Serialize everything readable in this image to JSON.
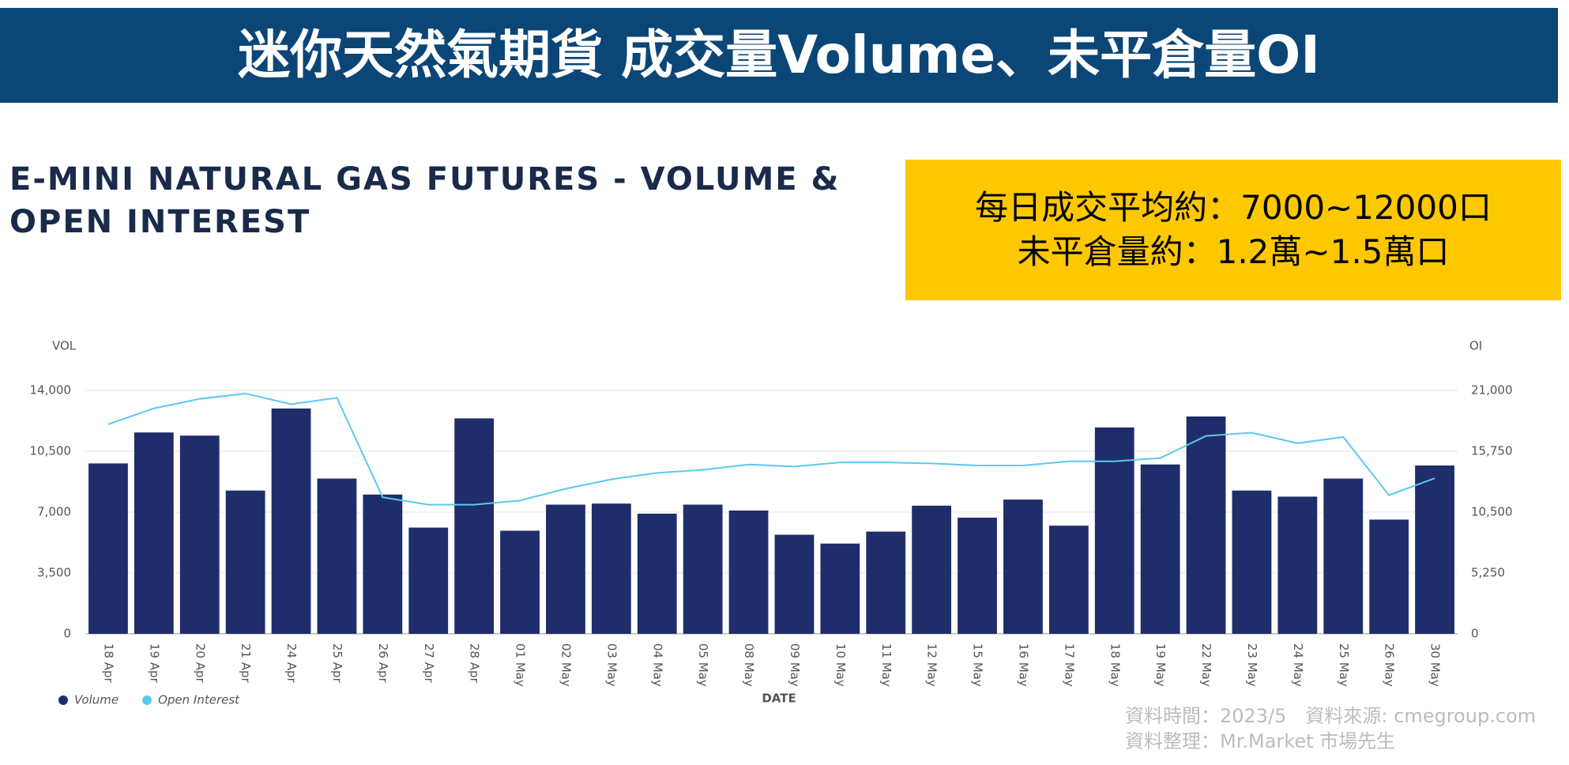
{
  "header": {
    "banner": "迷你天然氣期貨 成交量Volume、未平倉量OI"
  },
  "annotations": [
    "每日成交平均約：7000~12000口",
    "未平倉量約：1.2萬~1.5萬口"
  ],
  "footer": [
    "資料時間：2023/5　資料來源: cmegroup.com",
    "資料整理：Mr.Market 市場先生"
  ],
  "chart_data": {
    "type": "bar_line",
    "title": "E-MINI NATURAL GAS FUTURES - VOLUME & OPEN INTEREST",
    "x_label": "DATE",
    "y_label": "VOL",
    "y2_label": "OI",
    "categories": [
      "18 Apr",
      "19 Apr",
      "20 Apr",
      "21 Apr",
      "24 Apr",
      "25 Apr",
      "26 Apr",
      "27 Apr",
      "28 Apr",
      "01 May",
      "02 May",
      "03 May",
      "04 May",
      "05 May",
      "08 May",
      "09 May",
      "10 May",
      "11 May",
      "12 May",
      "15 May",
      "16 May",
      "17 May",
      "18 May",
      "19 May",
      "22 May",
      "23 May",
      "24 May",
      "25 May",
      "26 May",
      "30 May"
    ],
    "series": [
      {
        "name": "Volume",
        "type": "bar",
        "color": "#1f2d6b",
        "values": [
          9800,
          11580,
          11400,
          8240,
          12960,
          8930,
          8010,
          6110,
          12390,
          5930,
          7430,
          7490,
          6910,
          7430,
          7090,
          5700,
          5190,
          5880,
          7370,
          6680,
          7720,
          6220,
          11870,
          9740,
          12500,
          8240,
          7890,
          8930,
          6570,
          9680
        ]
      },
      {
        "name": "Open Interest",
        "type": "line",
        "axis": "y2",
        "color": "#5bc8f0",
        "values": [
          18080,
          19450,
          20270,
          20730,
          19810,
          20360,
          11780,
          11140,
          11140,
          11500,
          12510,
          13330,
          13880,
          14150,
          14610,
          14430,
          14790,
          14790,
          14700,
          14520,
          14520,
          14880,
          14880,
          15160,
          17070,
          17350,
          16440,
          16980,
          11960,
          13420
        ]
      }
    ],
    "ylim": [
      0,
      14000
    ],
    "yticks": [
      0,
      {
        "value": 3500,
        "label": "3,500"
      },
      {
        "value": 7000,
        "label": "7,000"
      },
      {
        "value": 10500,
        "label": "10,500"
      },
      {
        "value": 14000,
        "label": "14,000"
      }
    ],
    "y2lim": [
      0,
      21000
    ],
    "y2ticks": [
      0,
      {
        "value": 5250,
        "label": "5,250"
      },
      {
        "value": 10500,
        "label": "10,500"
      },
      {
        "value": 15750,
        "label": "15,750"
      },
      {
        "value": 21000,
        "label": "21,000"
      }
    ],
    "grid": true
  }
}
